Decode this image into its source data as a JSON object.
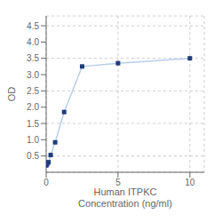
{
  "chart_data": {
    "type": "line",
    "xlabel": "Human ITPKC\nConcentration (ng/ml)",
    "ylabel": "OD",
    "x": [
      0.0,
      0.04,
      0.08,
      0.16,
      0.313,
      0.625,
      1.25,
      2.5,
      5.0,
      10.0
    ],
    "series": [
      {
        "type": "line",
        "color": "#b8cfe8",
        "values": [
          0.21,
          0.24,
          0.27,
          0.31,
          0.53,
          0.92,
          1.85,
          3.25,
          3.35,
          3.5
        ]
      },
      {
        "type": "scatter",
        "color": "#1f3d7a",
        "marker": "square",
        "values": [
          0.21,
          0.24,
          0.27,
          0.31,
          0.53,
          0.92,
          1.85,
          3.25,
          3.35,
          3.5
        ]
      }
    ],
    "xlim": [
      0,
      11
    ],
    "xticks": [
      0,
      5,
      10
    ],
    "ylim": [
      0.0,
      4.8
    ],
    "yticks": [
      0.5,
      {
        "value": 1.0,
        "label": "1.0"
      },
      1.5,
      {
        "value": 2.0,
        "label": "2.0"
      },
      2.5,
      {
        "value": 3.0,
        "label": "3.0"
      },
      3.5,
      {
        "value": 4.0,
        "label": "4.0"
      },
      4.5
    ],
    "grid": true
  }
}
